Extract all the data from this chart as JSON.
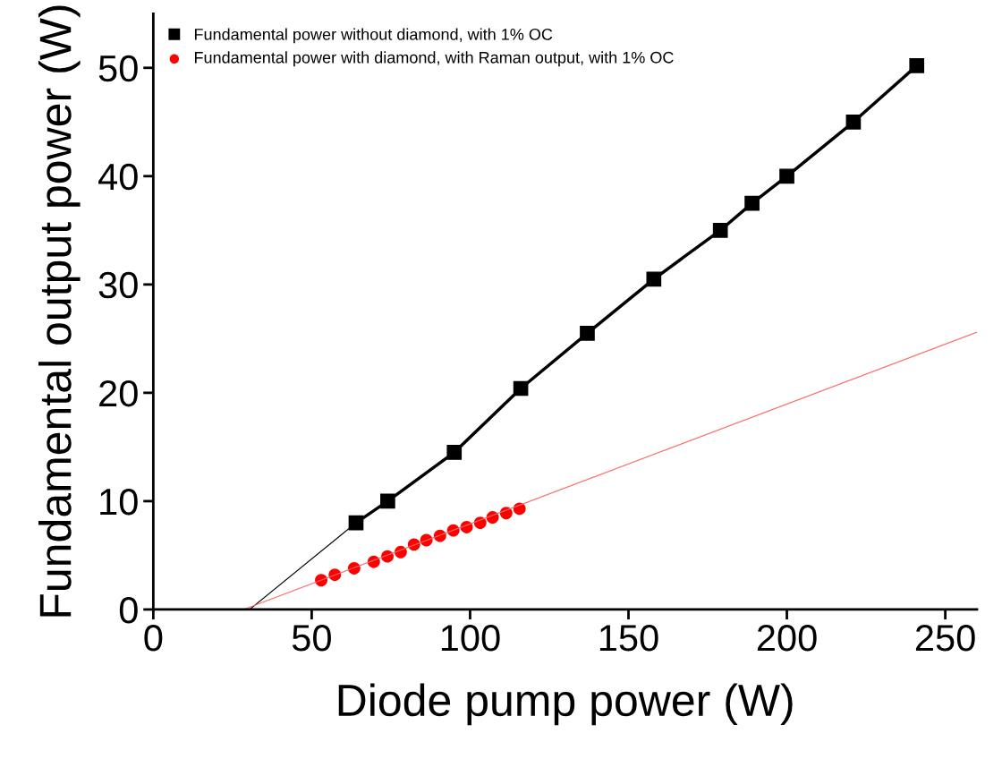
{
  "chart_data": {
    "type": "line",
    "xlabel": "Diode pump power (W)",
    "ylabel": "Fundamental output power (W)",
    "xlim": [
      0,
      260
    ],
    "ylim": [
      0,
      55
    ],
    "xticks": [
      0,
      50,
      100,
      150,
      200,
      250
    ],
    "yticks": [
      0,
      10,
      20,
      30,
      40,
      50
    ],
    "grid": false,
    "legend": "top left",
    "series": [
      {
        "name": "Fundamental power without diamond, with 1% OC",
        "marker": "square",
        "color": "#000000",
        "x": [
          64,
          74,
          95,
          116,
          137,
          158,
          179,
          189,
          200,
          221,
          241
        ],
        "values": [
          8.0,
          10.0,
          14.5,
          20.4,
          25.5,
          30.5,
          35.0,
          37.5,
          40.0,
          45.0,
          50.2
        ]
      },
      {
        "name": "Fundamental power with diamond, with Raman output, with 1% OC",
        "type": "scatter",
        "marker": "circle",
        "color": "#ff0000",
        "x": [
          53,
          57.3,
          63.4,
          69.6,
          73.9,
          78.1,
          82.3,
          86.2,
          90.5,
          94.7,
          98.9,
          103.2,
          107.1,
          111.4,
          115.6
        ],
        "values": [
          2.7,
          3.2,
          3.8,
          4.4,
          4.9,
          5.3,
          6.0,
          6.4,
          6.8,
          7.3,
          7.6,
          8.0,
          8.5,
          8.9,
          9.3
        ]
      },
      {
        "marker": "none",
        "color": "#000000",
        "x": [
          30.4,
          64
        ],
        "values": [
          0,
          8.0
        ]
      },
      {
        "marker": "none",
        "color": "#ff6666",
        "x": [
          28.5,
          260
        ],
        "values": [
          0,
          25.6
        ]
      }
    ]
  }
}
